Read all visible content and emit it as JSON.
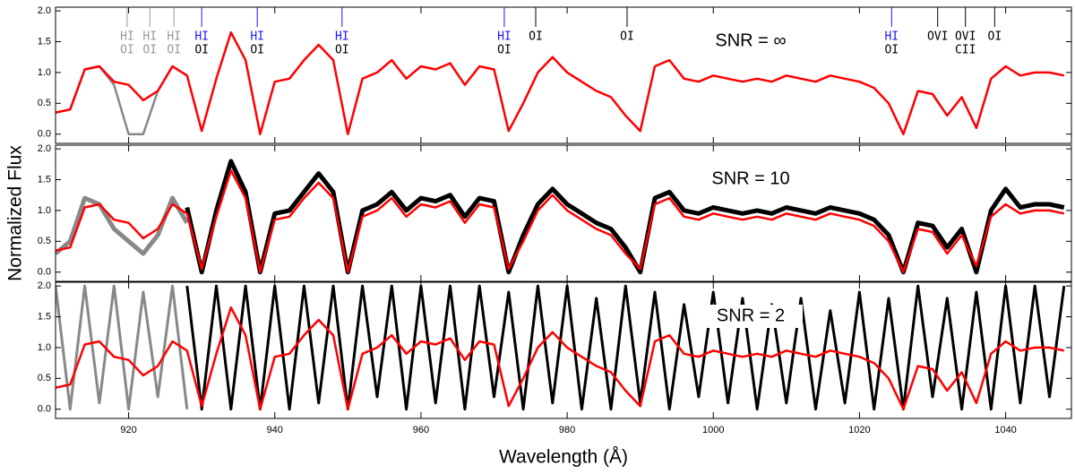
{
  "chart_data": [
    {
      "type": "line",
      "label": "SNR = ∞",
      "xlim": [
        910,
        1049
      ],
      "xticks": [
        920,
        940,
        960,
        980,
        1000,
        1020,
        1040
      ],
      "ylim": [
        -0.15,
        2.06
      ],
      "yticks": [
        {
          "value": 0,
          "label": "0.0"
        },
        0.5,
        {
          "value": 1,
          "label": "1.0"
        },
        1.5,
        {
          "value": 2,
          "label": "2.0"
        }
      ],
      "series": [
        {
          "color": "#888888",
          "x": [
            910,
            912,
            914,
            916,
            918,
            920,
            922,
            924,
            926,
            928
          ],
          "values": [
            0.35,
            0.4,
            1.05,
            1.1,
            0.8,
            0.0,
            0.0,
            0.7,
            1.1,
            0.95
          ]
        },
        {
          "color": "#ff0000",
          "x": [
            910,
            912,
            914,
            916,
            918,
            920,
            922,
            924,
            926,
            928,
            930,
            932,
            934,
            936,
            938,
            940,
            942,
            944,
            946,
            948,
            950,
            952,
            954,
            956,
            958,
            960,
            962,
            964,
            966,
            968,
            970,
            972,
            974,
            976,
            978,
            980,
            982,
            984,
            986,
            988,
            990,
            992,
            994,
            996,
            998,
            1000,
            1002,
            1004,
            1006,
            1008,
            1010,
            1012,
            1014,
            1016,
            1018,
            1020,
            1022,
            1024,
            1026,
            1028,
            1030,
            1032,
            1034,
            1036,
            1038,
            1040,
            1042,
            1044,
            1046,
            1048
          ],
          "values": [
            0.35,
            0.4,
            1.05,
            1.1,
            0.85,
            0.8,
            0.55,
            0.7,
            1.1,
            0.95,
            0.05,
            0.9,
            1.65,
            1.2,
            0.0,
            0.85,
            0.9,
            1.2,
            1.45,
            1.2,
            0.0,
            0.9,
            1.0,
            1.2,
            0.9,
            1.1,
            1.05,
            1.15,
            0.8,
            1.1,
            1.05,
            0.05,
            0.5,
            1.0,
            1.25,
            1.0,
            0.85,
            0.7,
            0.6,
            0.3,
            0.05,
            1.1,
            1.2,
            0.9,
            0.85,
            0.95,
            0.9,
            0.85,
            0.9,
            0.85,
            0.95,
            0.9,
            0.85,
            0.95,
            0.9,
            0.85,
            0.75,
            0.5,
            0.0,
            0.7,
            0.65,
            0.3,
            0.6,
            0.1,
            0.9,
            1.1,
            0.95,
            1.0,
            1.0,
            0.95
          ]
        }
      ],
      "annotations": [
        {
          "x": 919.8,
          "labels": [
            "HI",
            "OI"
          ],
          "colors": [
            "#999999",
            "#999999"
          ]
        },
        {
          "x": 922.9,
          "labels": [
            "HI",
            "OI"
          ],
          "colors": [
            "#999999",
            "#999999"
          ]
        },
        {
          "x": 926.2,
          "labels": [
            "HI",
            "OI"
          ],
          "colors": [
            "#999999",
            "#999999"
          ]
        },
        {
          "x": 930.0,
          "labels": [
            "HI",
            "OI"
          ],
          "colors": [
            "#1a1aff",
            "#000000"
          ]
        },
        {
          "x": 937.6,
          "labels": [
            "HI",
            "OI"
          ],
          "colors": [
            "#1a1aff",
            "#000000"
          ]
        },
        {
          "x": 949.2,
          "labels": [
            "HI",
            "OI"
          ],
          "colors": [
            "#1a1aff",
            "#000000"
          ]
        },
        {
          "x": 971.4,
          "labels": [
            "HI",
            "OI"
          ],
          "colors": [
            "#1a1aff",
            "#000000"
          ]
        },
        {
          "x": 975.7,
          "labels": [
            "OI"
          ],
          "colors": [
            "#000000"
          ]
        },
        {
          "x": 988.2,
          "labels": [
            "OI"
          ],
          "colors": [
            "#000000"
          ]
        },
        {
          "x": 1024.4,
          "labels": [
            "HI",
            "OI"
          ],
          "colors": [
            "#1a1aff",
            "#000000"
          ]
        },
        {
          "x": 1030.7,
          "labels": [
            "OVI"
          ],
          "colors": [
            "#000000"
          ]
        },
        {
          "x": 1034.5,
          "labels": [
            "OVI",
            "CII"
          ],
          "colors": [
            "#000000",
            "#000000"
          ]
        },
        {
          "x": 1038.5,
          "labels": [
            "OI"
          ],
          "colors": [
            "#000000"
          ]
        }
      ]
    },
    {
      "type": "line",
      "label": "SNR = 10",
      "ylabel": "Normalized Flux",
      "xlim": [
        910,
        1049
      ],
      "xticks": [
        920,
        940,
        960,
        980,
        1000,
        1020,
        1040
      ],
      "ylim": [
        -0.15,
        2.06
      ],
      "yticks": [
        {
          "value": 0,
          "label": "0.0"
        },
        0.5,
        {
          "value": 1,
          "label": "1.0"
        },
        1.5,
        {
          "value": 2,
          "label": "2.0"
        }
      ],
      "series": [
        {
          "color": "#888888",
          "x": [
            910,
            912,
            914,
            916,
            918,
            920,
            922,
            924,
            926,
            928
          ],
          "values": [
            0.3,
            0.5,
            1.2,
            1.1,
            0.7,
            0.5,
            0.3,
            0.6,
            1.2,
            0.8
          ]
        },
        {
          "color": "#000000",
          "x": [
            928,
            930,
            932,
            934,
            936,
            938,
            940,
            942,
            944,
            946,
            948,
            950,
            952,
            954,
            956,
            958,
            960,
            962,
            964,
            966,
            968,
            970,
            972,
            974,
            976,
            978,
            980,
            982,
            984,
            986,
            988,
            990,
            992,
            994,
            996,
            998,
            1000,
            1002,
            1004,
            1006,
            1008,
            1010,
            1012,
            1014,
            1016,
            1018,
            1020,
            1022,
            1024,
            1026,
            1028,
            1030,
            1032,
            1034,
            1036,
            1038,
            1040,
            1042,
            1044,
            1046,
            1048
          ],
          "values": [
            1.05,
            0.0,
            1.0,
            1.8,
            1.3,
            0.0,
            0.95,
            1.0,
            1.3,
            1.6,
            1.3,
            0.0,
            1.0,
            1.1,
            1.3,
            1.0,
            1.2,
            1.15,
            1.25,
            0.9,
            1.2,
            1.15,
            0.0,
            0.6,
            1.1,
            1.35,
            1.1,
            0.95,
            0.8,
            0.7,
            0.4,
            0.0,
            1.2,
            1.3,
            1.0,
            0.95,
            1.05,
            1.0,
            0.95,
            1.0,
            0.95,
            1.05,
            1.0,
            0.95,
            1.05,
            1.0,
            0.95,
            0.85,
            0.6,
            0.0,
            0.8,
            0.75,
            0.4,
            0.7,
            0.0,
            1.0,
            1.35,
            1.05,
            1.1,
            1.1,
            1.05
          ]
        },
        {
          "color": "#ff0000",
          "x": [
            910,
            912,
            914,
            916,
            918,
            920,
            922,
            924,
            926,
            928,
            930,
            932,
            934,
            936,
            938,
            940,
            942,
            944,
            946,
            948,
            950,
            952,
            954,
            956,
            958,
            960,
            962,
            964,
            966,
            968,
            970,
            972,
            974,
            976,
            978,
            980,
            982,
            984,
            986,
            988,
            990,
            992,
            994,
            996,
            998,
            1000,
            1002,
            1004,
            1006,
            1008,
            1010,
            1012,
            1014,
            1016,
            1018,
            1020,
            1022,
            1024,
            1026,
            1028,
            1030,
            1032,
            1034,
            1036,
            1038,
            1040,
            1042,
            1044,
            1046,
            1048
          ],
          "values": [
            0.35,
            0.4,
            1.05,
            1.1,
            0.85,
            0.8,
            0.55,
            0.7,
            1.1,
            0.95,
            0.05,
            0.9,
            1.65,
            1.2,
            0.0,
            0.85,
            0.9,
            1.2,
            1.45,
            1.2,
            0.0,
            0.9,
            1.0,
            1.2,
            0.9,
            1.1,
            1.05,
            1.15,
            0.8,
            1.1,
            1.05,
            0.05,
            0.5,
            1.0,
            1.25,
            1.0,
            0.85,
            0.7,
            0.6,
            0.3,
            0.05,
            1.1,
            1.2,
            0.9,
            0.85,
            0.95,
            0.9,
            0.85,
            0.9,
            0.85,
            0.95,
            0.9,
            0.85,
            0.95,
            0.9,
            0.85,
            0.75,
            0.5,
            0.0,
            0.7,
            0.65,
            0.3,
            0.6,
            0.1,
            0.9,
            1.1,
            0.95,
            1.0,
            1.0,
            0.95
          ]
        }
      ]
    },
    {
      "type": "line",
      "label": "SNR = 2",
      "xlabel": "Wavelength (Å)",
      "xlim": [
        910,
        1049
      ],
      "xticks": [
        920,
        940,
        960,
        980,
        1000,
        1020,
        1040
      ],
      "ylim": [
        -0.15,
        2.06
      ],
      "yticks": [
        {
          "value": 0,
          "label": "0.0"
        },
        0.5,
        {
          "value": 1,
          "label": "1.0"
        },
        1.5,
        {
          "value": 2,
          "label": "2.0"
        }
      ],
      "series": [
        {
          "color": "#888888",
          "x": [
            910,
            912,
            914,
            916,
            918,
            920,
            922,
            924,
            926,
            928
          ],
          "values": [
            2.0,
            0.0,
            2.0,
            0.1,
            2.0,
            0.0,
            1.9,
            0.2,
            2.0,
            0.0
          ]
        },
        {
          "color": "#000000",
          "x": [
            928,
            930,
            932,
            934,
            936,
            938,
            940,
            942,
            944,
            946,
            948,
            950,
            952,
            954,
            956,
            958,
            960,
            962,
            964,
            966,
            968,
            970,
            972,
            974,
            976,
            978,
            980,
            982,
            984,
            986,
            988,
            990,
            992,
            994,
            996,
            998,
            1000,
            1002,
            1004,
            1006,
            1008,
            1010,
            1012,
            1014,
            1016,
            1018,
            1020,
            1022,
            1024,
            1026,
            1028,
            1030,
            1032,
            1034,
            1036,
            1038,
            1040,
            1042,
            1044,
            1046,
            1048
          ],
          "values": [
            2.0,
            0.0,
            2.0,
            0.0,
            2.0,
            0.0,
            2.0,
            0.0,
            2.0,
            0.1,
            2.0,
            0.0,
            2.0,
            0.2,
            2.0,
            0.0,
            2.0,
            0.1,
            2.0,
            0.0,
            2.0,
            0.2,
            1.9,
            0.0,
            2.0,
            0.1,
            2.0,
            0.0,
            1.8,
            0.0,
            2.0,
            0.1,
            1.9,
            0.0,
            1.7,
            0.2,
            1.9,
            0.1,
            1.8,
            0.0,
            1.7,
            0.1,
            1.8,
            0.0,
            1.6,
            0.1,
            1.9,
            0.0,
            1.8,
            0.0,
            2.0,
            0.2,
            1.8,
            0.0,
            1.9,
            0.0,
            2.0,
            0.1,
            2.0,
            0.2,
            2.0
          ]
        },
        {
          "color": "#ff0000",
          "x": [
            910,
            912,
            914,
            916,
            918,
            920,
            922,
            924,
            926,
            928,
            930,
            932,
            934,
            936,
            938,
            940,
            942,
            944,
            946,
            948,
            950,
            952,
            954,
            956,
            958,
            960,
            962,
            964,
            966,
            968,
            970,
            972,
            974,
            976,
            978,
            980,
            982,
            984,
            986,
            988,
            990,
            992,
            994,
            996,
            998,
            1000,
            1002,
            1004,
            1006,
            1008,
            1010,
            1012,
            1014,
            1016,
            1018,
            1020,
            1022,
            1024,
            1026,
            1028,
            1030,
            1032,
            1034,
            1036,
            1038,
            1040,
            1042,
            1044,
            1046,
            1048
          ],
          "values": [
            0.35,
            0.4,
            1.05,
            1.1,
            0.85,
            0.8,
            0.55,
            0.7,
            1.1,
            0.95,
            0.05,
            0.9,
            1.65,
            1.2,
            0.0,
            0.85,
            0.9,
            1.2,
            1.45,
            1.2,
            0.0,
            0.9,
            1.0,
            1.2,
            0.9,
            1.1,
            1.05,
            1.15,
            0.8,
            1.1,
            1.05,
            0.05,
            0.5,
            1.0,
            1.25,
            1.0,
            0.85,
            0.7,
            0.6,
            0.3,
            0.05,
            1.1,
            1.2,
            0.9,
            0.85,
            0.95,
            0.9,
            0.85,
            0.9,
            0.85,
            0.95,
            0.9,
            0.85,
            0.95,
            0.9,
            0.85,
            0.75,
            0.5,
            0.0,
            0.7,
            0.65,
            0.3,
            0.6,
            0.1,
            0.9,
            1.1,
            0.95,
            1.0,
            1.0,
            0.95
          ]
        }
      ]
    }
  ]
}
